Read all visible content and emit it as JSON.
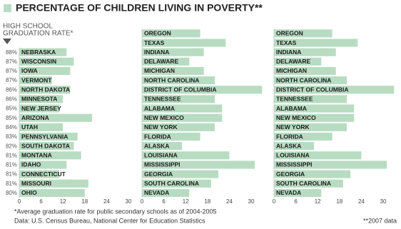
{
  "title": "PERCENTAGE OF CHILDREN LIVING IN POVERTY**",
  "header_lines": [
    "HIGH SCHOOL",
    "GRADUATION RATE*"
  ],
  "footnotes": [
    "*Average graduation rate for public secondary schools as of 2004-2005",
    "Data: U.S. Census Bureau, National Center for Education Statistics",
    "**2007 data"
  ],
  "chart_data": [
    {
      "type": "bar",
      "orientation": "horizontal",
      "color": "#b8dcc2",
      "graduation_rates": [
        "88%",
        "87%",
        "87%",
        "87%",
        "86%",
        "86%",
        "85%",
        "85%",
        "84%",
        "83%",
        "82%",
        "81%",
        "81%",
        "81%",
        "81%",
        "80%"
      ],
      "categories": [
        "NEBRASKA",
        "WISCONSIN",
        "IOWA",
        "VERMONT",
        "NORTH DAKOTA",
        "MINNESOTA",
        "NEW JERSEY",
        "ARIZONA",
        "UTAH",
        "PENNSYLVANIA",
        "SOUTH DAKOTA",
        "MONTANA",
        "IDAHO",
        "CONNECTICUT",
        "MISSOURI",
        "OHIO"
      ],
      "values": [
        13,
        15,
        14,
        9,
        14,
        12,
        11,
        20,
        12,
        16,
        15,
        17,
        13,
        11,
        19,
        18
      ],
      "xlim": [
        0,
        30
      ],
      "xticks": [
        0,
        6,
        12,
        18,
        24,
        30
      ]
    },
    {
      "type": "bar",
      "orientation": "horizontal",
      "color": "#b8dcc2",
      "categories": [
        "OREGON",
        "TEXAS",
        "INDIANA",
        "DELAWARE",
        "MICHIGAN",
        "NORTH CAROLINA",
        "DISTRICT OF COLUMBIA",
        "TENNESSEE",
        "ALABAMA",
        "NEW MEXICO",
        "NEW YORK",
        "FLORIDA",
        "ALASKA",
        "LOUISIANA",
        "MISSISSIPPI",
        "GEORGIA",
        "SOUTH CAROLINA",
        "NEVADA"
      ],
      "values": [
        16,
        23,
        17,
        13,
        17,
        20,
        33,
        20,
        22,
        22,
        20,
        16,
        11,
        24,
        31,
        21,
        19,
        13
      ],
      "xlim": [
        0,
        30
      ],
      "xticks": [
        0,
        6,
        12,
        18,
        24,
        30
      ]
    },
    {
      "type": "bar",
      "orientation": "horizontal",
      "color": "#b8dcc2",
      "categories": [
        "OREGON",
        "TEXAS",
        "INDIANA",
        "DELAWARE",
        "MICHIGAN",
        "NORTH CAROLINA",
        "DISTRICT OF COLUMBIA",
        "TENNESSEE",
        "ALABAMA",
        "NEW MEXICO",
        "NEW YORK",
        "FLORIDA",
        "ALASKA",
        "LOUISIANA",
        "MISSISSIPPI",
        "GEORGIA",
        "SOUTH CAROLINA",
        "NEVADA"
      ],
      "values": [
        16,
        23,
        17,
        13,
        17,
        20,
        33,
        20,
        22,
        22,
        20,
        16,
        11,
        24,
        31,
        21,
        19,
        13
      ],
      "xlim": [
        0,
        30
      ],
      "xticks": [
        0,
        6,
        12,
        18,
        24,
        30
      ]
    }
  ]
}
